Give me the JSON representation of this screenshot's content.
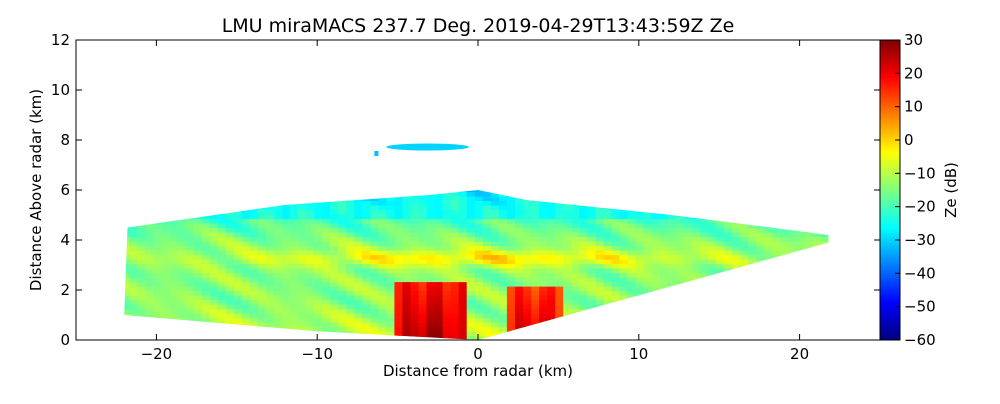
{
  "chart_data": {
    "type": "heatmap",
    "title": "LMU miraMACS 237.7 Deg. 2019-04-29T13:43:59Z  Ze",
    "xlabel": "Distance from radar (km)",
    "ylabel": "Distance Above radar  (km)",
    "xlim": [
      -25,
      25
    ],
    "ylim": [
      0,
      12
    ],
    "xticks": [
      -20,
      -10,
      0,
      10,
      20
    ],
    "xtick_labels": [
      "−20",
      "−10",
      "0",
      "10",
      "20"
    ],
    "yticks": [
      0,
      2,
      4,
      6,
      8,
      10,
      12
    ],
    "ytick_labels": [
      "0",
      "2",
      "4",
      "6",
      "8",
      "10",
      "12"
    ],
    "colorbar": {
      "label": "Ze (dB)",
      "range": [
        -60,
        30
      ],
      "ticks": [
        30,
        20,
        10,
        0,
        -10,
        -20,
        -30,
        -40,
        -50,
        -60
      ],
      "tick_labels": [
        "30",
        "20",
        "10",
        "0",
        "−10",
        "−20",
        "−30",
        "−40",
        "−50",
        "−60"
      ],
      "colormap": [
        "#00007f",
        "#0000ff",
        "#007fff",
        "#00ffff",
        "#7fff7f",
        "#ffff00",
        "#ff7f00",
        "#ff0000",
        "#7f0000"
      ]
    },
    "scan_region": {
      "polygon_km": [
        [
          -22,
          1.0
        ],
        [
          -21.8,
          4.5
        ],
        [
          -12,
          5.4
        ],
        [
          -3,
          5.8
        ],
        [
          0,
          6.0
        ],
        [
          3,
          5.6
        ],
        [
          12,
          5.0
        ],
        [
          21.8,
          4.2
        ],
        [
          21.8,
          3.9
        ],
        [
          0,
          0
        ],
        [
          -10,
          0.35
        ]
      ],
      "background_dB": -15
    },
    "features": [
      {
        "name": "convective-core",
        "x_range_km": [
          -5.5,
          -1.0
        ],
        "top_km": 2.3,
        "Ze_dB": 25
      },
      {
        "name": "convective-core",
        "x_range_km": [
          1.5,
          5.0
        ],
        "top_km": 2.0,
        "Ze_dB": 22
      },
      {
        "name": "melting-layer-band",
        "x_range_km": [
          -12,
          14
        ],
        "height_km": 3.2,
        "Ze_dB": 0
      },
      {
        "name": "cloud-top-edge",
        "x_range_km": [
          -18,
          16
        ],
        "height_km": 5.3,
        "Ze_dB": -28
      },
      {
        "name": "elevated-cloud-layer",
        "x_range_km": [
          -8,
          -1
        ],
        "height_km": 7.8,
        "Ze_dB": -30
      }
    ]
  }
}
